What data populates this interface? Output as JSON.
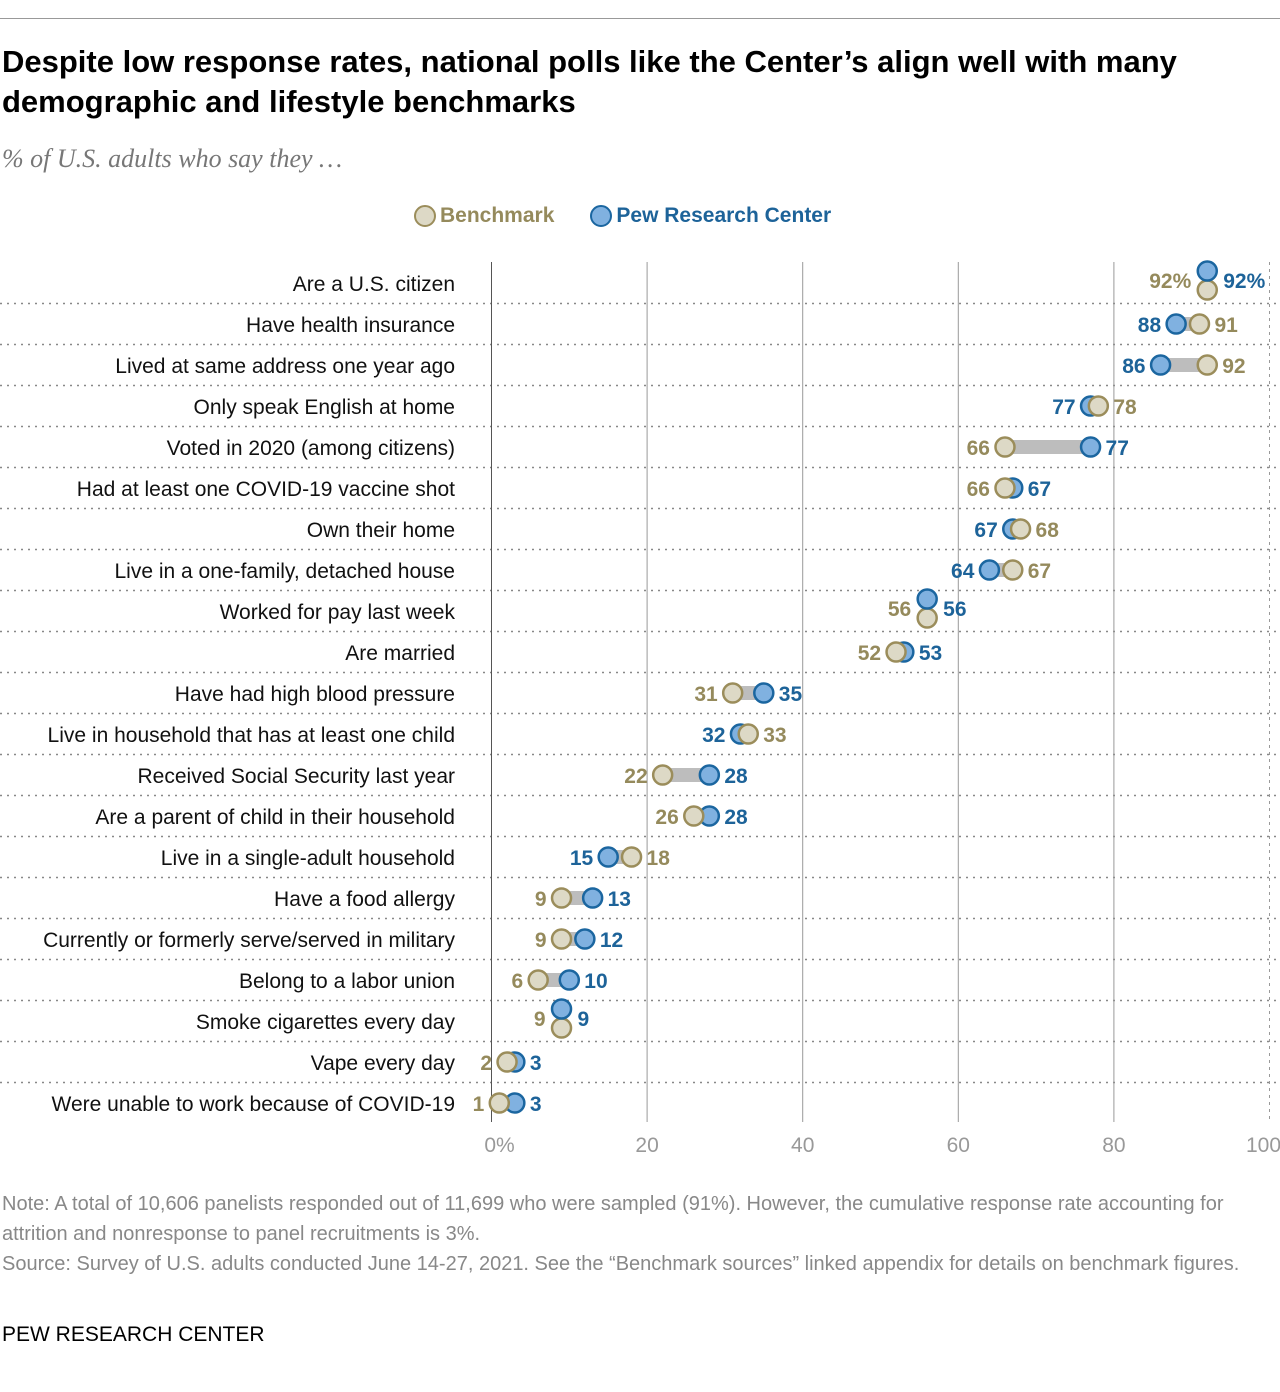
{
  "title": "Despite low response rates, national polls like the Center’s align well with many demographic and lifestyle benchmarks",
  "subtitle": "% of U.S. adults who say they …",
  "note": "Note: A total of 10,606 panelists responded out of 11,699 who were sampled (91%). However, the cumulative response rate accounting for attrition and nonresponse to panel recruitments is 3%.",
  "source": "Source: Survey of U.S. adults conducted June 14-27, 2021. See the “Benchmark sources” linked appendix for details on benchmark figures.",
  "brand": "PEW RESEARCH CENTER",
  "colors": {
    "benchmark_fill": "#ddd9c6",
    "benchmark_stroke": "#9b8d5b",
    "benchmark_text": "#958a5c",
    "pew_fill": "#80b1e0",
    "pew_stroke": "#1b66a0",
    "pew_text": "#1d6399",
    "connector": "#bdbdbd"
  },
  "chart_data": {
    "type": "dot-plot",
    "legend": [
      "Benchmark",
      "Pew Research Center"
    ],
    "legend_position": "top",
    "xlim": [
      0,
      100
    ],
    "xticks": [
      "0%",
      "20",
      "40",
      "60",
      "80",
      "100"
    ],
    "grid": true,
    "categories": [
      "Are a U.S. citizen",
      "Have health insurance",
      "Lived at same address one year ago",
      "Only speak English at home",
      "Voted in 2020 (among citizens)",
      "Had at least one COVID-19 vaccine shot",
      "Own their home",
      "Live in a one-family, detached house",
      "Worked for pay last week",
      "Are married",
      "Have had high blood pressure",
      "Live in household that has at least one child",
      "Received Social Security last year",
      "Are a parent of child in their household",
      "Live in a single-adult household",
      "Have a food allergy",
      "Currently or formerly serve/served in military",
      "Belong to a labor union",
      "Smoke cigarettes every day",
      "Vape every day",
      "Were unable to work because of COVID-19"
    ],
    "series": [
      {
        "name": "Benchmark",
        "values": [
          92,
          91,
          92,
          78,
          66,
          66,
          68,
          67,
          56,
          52,
          31,
          33,
          22,
          26,
          18,
          9,
          9,
          6,
          9,
          2,
          1
        ]
      },
      {
        "name": "Pew Research Center",
        "values": [
          92,
          88,
          86,
          77,
          77,
          67,
          67,
          64,
          56,
          53,
          35,
          32,
          28,
          28,
          15,
          13,
          12,
          10,
          9,
          3,
          3
        ]
      }
    ],
    "first_row_label_suffix": "%"
  }
}
